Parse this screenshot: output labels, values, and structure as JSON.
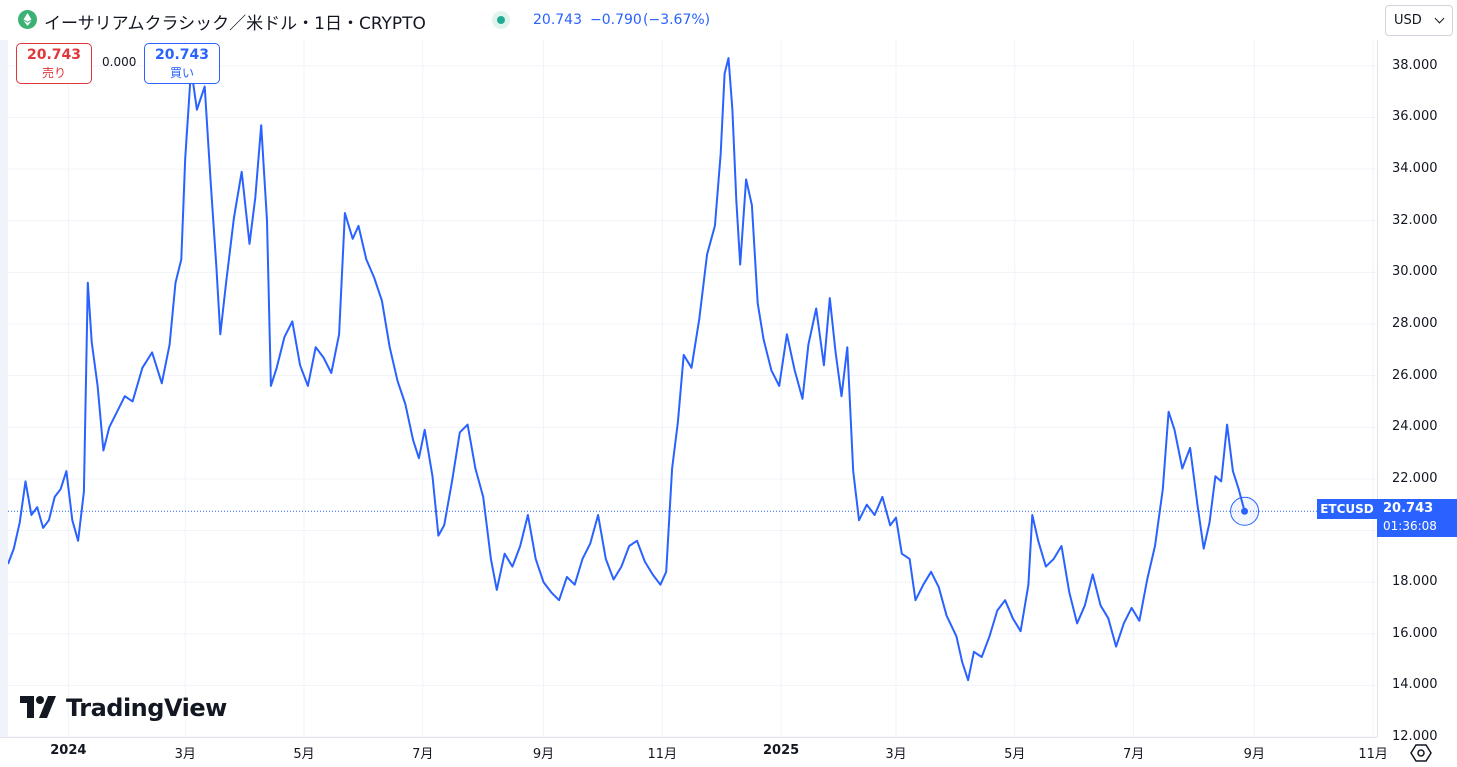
{
  "header": {
    "title": "イーサリアムクラシック／米ドル・1日・CRYPTO",
    "last": "20.743",
    "change": "−0.790",
    "change_pct": "(−3.67%)"
  },
  "trade": {
    "sell_price": "20.743",
    "sell_label": "売り",
    "spread": "0.000",
    "buy_price": "20.743",
    "buy_label": "買い"
  },
  "currency": "USD",
  "price_tag": {
    "symbol": "ETCUSD",
    "price": "20.743",
    "timer": "01:36:08"
  },
  "logo": "TradingView",
  "colors": {
    "line": "#2962ff",
    "sell": "#e0373b",
    "buy": "#2962ff",
    "icon": "#3bb273"
  },
  "chart_data": {
    "type": "line",
    "ylim": [
      12,
      39
    ],
    "y_ticks": [
      "38.000",
      "36.000",
      "34.000",
      "32.000",
      "30.000",
      "28.000",
      "26.000",
      "24.000",
      "22.000",
      "20.000",
      "18.000",
      "16.000",
      "14.000",
      "12.000"
    ],
    "y_tick_values": [
      38,
      36,
      34,
      32,
      30,
      28,
      26,
      24,
      22,
      20,
      18,
      16,
      14,
      12
    ],
    "x_ticks": [
      {
        "label": "2024",
        "date": "2024-01-01",
        "year": true
      },
      {
        "label": "3月",
        "date": "2024-03-01",
        "year": false
      },
      {
        "label": "5月",
        "date": "2024-05-01",
        "year": false
      },
      {
        "label": "7月",
        "date": "2024-07-01",
        "year": false
      },
      {
        "label": "9月",
        "date": "2024-09-01",
        "year": false
      },
      {
        "label": "11月",
        "date": "2024-11-01",
        "year": false
      },
      {
        "label": "2025",
        "date": "2025-01-01",
        "year": true
      },
      {
        "label": "3月",
        "date": "2025-03-01",
        "year": false
      },
      {
        "label": "5月",
        "date": "2025-05-01",
        "year": false
      },
      {
        "label": "7月",
        "date": "2025-07-01",
        "year": false
      },
      {
        "label": "9月",
        "date": "2025-09-01",
        "year": false
      },
      {
        "label": "11月",
        "date": "2025-11-01",
        "year": false
      }
    ],
    "x_range": [
      "2023-12-01",
      "2025-11-03"
    ],
    "last_value": 20.743,
    "grid": true,
    "series": [
      {
        "points": [
          [
            "2023-12-01",
            18.7
          ],
          [
            "2023-12-04",
            19.3
          ],
          [
            "2023-12-07",
            20.3
          ],
          [
            "2023-12-10",
            21.9
          ],
          [
            "2023-12-13",
            20.6
          ],
          [
            "2023-12-16",
            20.9
          ],
          [
            "2023-12-19",
            20.1
          ],
          [
            "2023-12-22",
            20.4
          ],
          [
            "2023-12-25",
            21.3
          ],
          [
            "2023-12-28",
            21.6
          ],
          [
            "2023-12-31",
            22.3
          ],
          [
            "2024-01-03",
            20.4
          ],
          [
            "2024-01-06",
            19.6
          ],
          [
            "2024-01-09",
            21.5
          ],
          [
            "2024-01-11",
            29.6
          ],
          [
            "2024-01-13",
            27.3
          ],
          [
            "2024-01-16",
            25.6
          ],
          [
            "2024-01-19",
            23.1
          ],
          [
            "2024-01-22",
            24.0
          ],
          [
            "2024-01-26",
            24.6
          ],
          [
            "2024-01-30",
            25.2
          ],
          [
            "2024-02-03",
            25.0
          ],
          [
            "2024-02-08",
            26.3
          ],
          [
            "2024-02-13",
            26.9
          ],
          [
            "2024-02-18",
            25.7
          ],
          [
            "2024-02-22",
            27.2
          ],
          [
            "2024-02-25",
            29.6
          ],
          [
            "2024-02-28",
            30.5
          ],
          [
            "2024-03-01",
            34.4
          ],
          [
            "2024-03-04",
            37.9
          ],
          [
            "2024-03-07",
            36.3
          ],
          [
            "2024-03-11",
            37.2
          ],
          [
            "2024-03-14",
            33.6
          ],
          [
            "2024-03-17",
            30.2
          ],
          [
            "2024-03-19",
            27.6
          ],
          [
            "2024-03-22",
            29.6
          ],
          [
            "2024-03-26",
            32.1
          ],
          [
            "2024-03-30",
            33.9
          ],
          [
            "2024-04-03",
            31.1
          ],
          [
            "2024-04-06",
            32.9
          ],
          [
            "2024-04-09",
            35.7
          ],
          [
            "2024-04-12",
            32.0
          ],
          [
            "2024-04-14",
            25.6
          ],
          [
            "2024-04-17",
            26.3
          ],
          [
            "2024-04-21",
            27.5
          ],
          [
            "2024-04-25",
            28.1
          ],
          [
            "2024-04-29",
            26.4
          ],
          [
            "2024-05-03",
            25.6
          ],
          [
            "2024-05-07",
            27.1
          ],
          [
            "2024-05-11",
            26.7
          ],
          [
            "2024-05-15",
            26.1
          ],
          [
            "2024-05-19",
            27.6
          ],
          [
            "2024-05-22",
            32.3
          ],
          [
            "2024-05-26",
            31.3
          ],
          [
            "2024-05-29",
            31.8
          ],
          [
            "2024-06-02",
            30.5
          ],
          [
            "2024-06-06",
            29.8
          ],
          [
            "2024-06-10",
            28.9
          ],
          [
            "2024-06-14",
            27.1
          ],
          [
            "2024-06-18",
            25.8
          ],
          [
            "2024-06-22",
            24.9
          ],
          [
            "2024-06-26",
            23.5
          ],
          [
            "2024-06-29",
            22.8
          ],
          [
            "2024-07-02",
            23.9
          ],
          [
            "2024-07-06",
            22.1
          ],
          [
            "2024-07-09",
            19.8
          ],
          [
            "2024-07-12",
            20.2
          ],
          [
            "2024-07-16",
            21.9
          ],
          [
            "2024-07-20",
            23.8
          ],
          [
            "2024-07-24",
            24.1
          ],
          [
            "2024-07-28",
            22.4
          ],
          [
            "2024-08-01",
            21.3
          ],
          [
            "2024-08-05",
            18.9
          ],
          [
            "2024-08-08",
            17.7
          ],
          [
            "2024-08-12",
            19.1
          ],
          [
            "2024-08-16",
            18.6
          ],
          [
            "2024-08-20",
            19.4
          ],
          [
            "2024-08-24",
            20.6
          ],
          [
            "2024-08-28",
            18.9
          ],
          [
            "2024-09-01",
            18.0
          ],
          [
            "2024-09-05",
            17.6
          ],
          [
            "2024-09-09",
            17.3
          ],
          [
            "2024-09-13",
            18.2
          ],
          [
            "2024-09-17",
            17.9
          ],
          [
            "2024-09-21",
            18.9
          ],
          [
            "2024-09-25",
            19.5
          ],
          [
            "2024-09-29",
            20.6
          ],
          [
            "2024-10-03",
            18.9
          ],
          [
            "2024-10-07",
            18.1
          ],
          [
            "2024-10-11",
            18.6
          ],
          [
            "2024-10-15",
            19.4
          ],
          [
            "2024-10-19",
            19.6
          ],
          [
            "2024-10-23",
            18.8
          ],
          [
            "2024-10-27",
            18.3
          ],
          [
            "2024-10-31",
            17.9
          ],
          [
            "2024-11-03",
            18.4
          ],
          [
            "2024-11-06",
            22.4
          ],
          [
            "2024-11-09",
            24.2
          ],
          [
            "2024-11-12",
            26.8
          ],
          [
            "2024-11-16",
            26.3
          ],
          [
            "2024-11-20",
            28.2
          ],
          [
            "2024-11-24",
            30.7
          ],
          [
            "2024-11-28",
            31.8
          ],
          [
            "2024-12-01",
            34.6
          ],
          [
            "2024-12-03",
            37.7
          ],
          [
            "2024-12-05",
            38.3
          ],
          [
            "2024-12-07",
            36.3
          ],
          [
            "2024-12-09",
            32.8
          ],
          [
            "2024-12-11",
            30.3
          ],
          [
            "2024-12-14",
            33.6
          ],
          [
            "2024-12-17",
            32.6
          ],
          [
            "2024-12-20",
            28.8
          ],
          [
            "2024-12-23",
            27.4
          ],
          [
            "2024-12-27",
            26.2
          ],
          [
            "2024-12-31",
            25.6
          ],
          [
            "2025-01-04",
            27.6
          ],
          [
            "2025-01-08",
            26.2
          ],
          [
            "2025-01-12",
            25.1
          ],
          [
            "2025-01-15",
            27.2
          ],
          [
            "2025-01-19",
            28.6
          ],
          [
            "2025-01-23",
            26.4
          ],
          [
            "2025-01-26",
            29.0
          ],
          [
            "2025-01-29",
            26.9
          ],
          [
            "2025-02-01",
            25.2
          ],
          [
            "2025-02-04",
            27.1
          ],
          [
            "2025-02-07",
            22.3
          ],
          [
            "2025-02-10",
            20.4
          ],
          [
            "2025-02-14",
            21.0
          ],
          [
            "2025-02-18",
            20.6
          ],
          [
            "2025-02-22",
            21.3
          ],
          [
            "2025-02-26",
            20.2
          ],
          [
            "2025-03-01",
            20.5
          ],
          [
            "2025-03-04",
            19.1
          ],
          [
            "2025-03-08",
            18.9
          ],
          [
            "2025-03-11",
            17.3
          ],
          [
            "2025-03-15",
            17.9
          ],
          [
            "2025-03-19",
            18.4
          ],
          [
            "2025-03-23",
            17.8
          ],
          [
            "2025-03-27",
            16.7
          ],
          [
            "2025-04-01",
            15.9
          ],
          [
            "2025-04-04",
            14.9
          ],
          [
            "2025-04-07",
            14.2
          ],
          [
            "2025-04-10",
            15.3
          ],
          [
            "2025-04-14",
            15.1
          ],
          [
            "2025-04-18",
            15.9
          ],
          [
            "2025-04-22",
            16.9
          ],
          [
            "2025-04-26",
            17.3
          ],
          [
            "2025-04-30",
            16.6
          ],
          [
            "2025-05-04",
            16.1
          ],
          [
            "2025-05-08",
            17.9
          ],
          [
            "2025-05-10",
            20.6
          ],
          [
            "2025-05-13",
            19.6
          ],
          [
            "2025-05-17",
            18.6
          ],
          [
            "2025-05-21",
            18.9
          ],
          [
            "2025-05-25",
            19.4
          ],
          [
            "2025-05-29",
            17.6
          ],
          [
            "2025-06-02",
            16.4
          ],
          [
            "2025-06-06",
            17.1
          ],
          [
            "2025-06-10",
            18.3
          ],
          [
            "2025-06-14",
            17.1
          ],
          [
            "2025-06-18",
            16.6
          ],
          [
            "2025-06-22",
            15.5
          ],
          [
            "2025-06-26",
            16.4
          ],
          [
            "2025-06-30",
            17.0
          ],
          [
            "2025-07-04",
            16.5
          ],
          [
            "2025-07-08",
            18.1
          ],
          [
            "2025-07-12",
            19.4
          ],
          [
            "2025-07-16",
            21.6
          ],
          [
            "2025-07-19",
            24.6
          ],
          [
            "2025-07-22",
            23.9
          ],
          [
            "2025-07-26",
            22.4
          ],
          [
            "2025-07-30",
            23.2
          ],
          [
            "2025-08-03",
            20.9
          ],
          [
            "2025-08-06",
            19.3
          ],
          [
            "2025-08-09",
            20.3
          ],
          [
            "2025-08-12",
            22.1
          ],
          [
            "2025-08-15",
            21.9
          ],
          [
            "2025-08-18",
            24.1
          ],
          [
            "2025-08-21",
            22.3
          ],
          [
            "2025-08-24",
            21.6
          ],
          [
            "2025-08-27",
            20.743
          ]
        ]
      }
    ]
  }
}
